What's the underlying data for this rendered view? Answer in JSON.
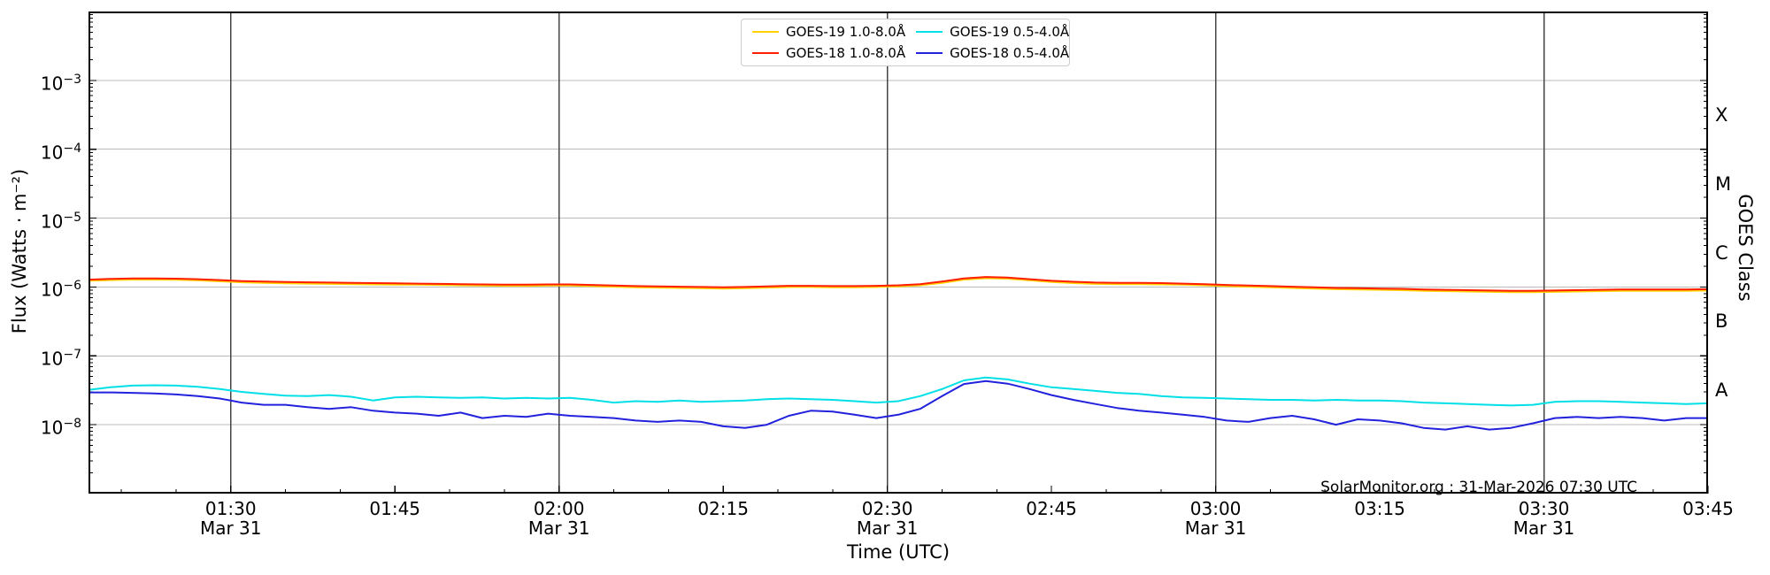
{
  "figure": {
    "watermark": "SolarMonitor.org : 31-Mar-2026 07:30 UTC",
    "background_color": "#ffffff",
    "border_color": "#000000",
    "major_gridline_color": "#444444",
    "decade_gridline_color": "#bbbbbb"
  },
  "chart_data": {
    "type": "line",
    "title": "",
    "xlabel": "Time (UTC)",
    "ylabel": "Flux (Watts · m⁻²)",
    "right_axis_label": "GOES Class",
    "x_unit": "minutes after 00:00 UTC on 31-Mar",
    "xlim": [
      77,
      225
    ],
    "ylim": [
      1e-09,
      0.01
    ],
    "y_scale": "log",
    "grid": "decade horizontal light, 30-min vertical dark",
    "legend_position": "top-center",
    "legend_columns": 2,
    "y_tick_exponents": [
      -3,
      -4,
      -5,
      -6,
      -7,
      -8
    ],
    "x_ticks": [
      {
        "t": 90,
        "time": "01:30",
        "date": "Mar 31"
      },
      {
        "t": 105,
        "time": "01:45",
        "date": ""
      },
      {
        "t": 120,
        "time": "02:00",
        "date": "Mar 31"
      },
      {
        "t": 135,
        "time": "02:15",
        "date": ""
      },
      {
        "t": 150,
        "time": "02:30",
        "date": "Mar 31"
      },
      {
        "t": 165,
        "time": "02:45",
        "date": ""
      },
      {
        "t": 180,
        "time": "03:00",
        "date": "Mar 31"
      },
      {
        "t": 195,
        "time": "03:15",
        "date": ""
      },
      {
        "t": 210,
        "time": "03:30",
        "date": "Mar 31"
      },
      {
        "t": 225,
        "time": "03:45",
        "date": ""
      }
    ],
    "x_minor_tick_step_min": 5,
    "vertical_gridline_times": [
      90,
      120,
      150,
      180,
      210
    ],
    "goes_classes": [
      {
        "label": "X",
        "center_exponent": -3.5
      },
      {
        "label": "M",
        "center_exponent": -4.5
      },
      {
        "label": "C",
        "center_exponent": -5.5
      },
      {
        "label": "B",
        "center_exponent": -6.5
      },
      {
        "label": "A",
        "center_exponent": -7.5
      }
    ],
    "x": [
      77,
      79,
      81,
      83,
      85,
      87,
      89,
      91,
      93,
      95,
      97,
      99,
      101,
      103,
      105,
      107,
      109,
      111,
      113,
      115,
      117,
      119,
      121,
      123,
      125,
      127,
      129,
      131,
      133,
      135,
      137,
      139,
      141,
      143,
      145,
      147,
      149,
      151,
      153,
      155,
      157,
      159,
      161,
      163,
      165,
      167,
      169,
      171,
      173,
      175,
      177,
      179,
      181,
      183,
      185,
      187,
      189,
      191,
      193,
      195,
      197,
      199,
      201,
      203,
      205,
      207,
      209,
      211,
      213,
      215,
      217,
      219,
      221,
      223,
      225
    ],
    "series": [
      {
        "name": "GOES-19 1.0-8.0Å",
        "color": "#ffd200",
        "values": [
          1.23e-06,
          1.26e-06,
          1.28e-06,
          1.28e-06,
          1.27e-06,
          1.25e-06,
          1.21e-06,
          1.17e-06,
          1.15e-06,
          1.13e-06,
          1.12e-06,
          1.11e-06,
          1.1e-06,
          1.09e-06,
          1.08e-06,
          1.08e-06,
          1.07e-06,
          1.06e-06,
          1.05e-06,
          1.04e-06,
          1.04e-06,
          1.05e-06,
          1.05e-06,
          1.03e-06,
          1.01e-06,
          9.9e-07,
          9.8e-07,
          9.7e-07,
          9.6e-07,
          9.5e-07,
          9.6e-07,
          9.8e-07,
          1e-06,
          1e-06,
          9.9e-07,
          9.9e-07,
          1e-06,
          1.02e-06,
          1.06e-06,
          1.15e-06,
          1.28e-06,
          1.34e-06,
          1.32e-06,
          1.25e-06,
          1.18e-06,
          1.14e-06,
          1.11e-06,
          1.1e-06,
          1.1e-06,
          1.09e-06,
          1.08e-06,
          1.06e-06,
          1.03e-06,
          1.01e-06,
          9.9e-07,
          9.7e-07,
          9.5e-07,
          9.3e-07,
          9.2e-07,
          9.1e-07,
          9e-07,
          8.8e-07,
          8.7e-07,
          8.6e-07,
          8.5e-07,
          8.4e-07,
          8.4e-07,
          8.5e-07,
          8.6e-07,
          8.7e-07,
          8.8e-07,
          8.8e-07,
          8.8e-07,
          8.8e-07,
          8.9e-07
        ]
      },
      {
        "name": "GOES-18 1.0-8.0Å",
        "color": "#ff1e00",
        "values": [
          1.28e-06,
          1.31e-06,
          1.33e-06,
          1.33e-06,
          1.32e-06,
          1.3e-06,
          1.26e-06,
          1.22e-06,
          1.2e-06,
          1.18e-06,
          1.17e-06,
          1.16e-06,
          1.15e-06,
          1.14e-06,
          1.13e-06,
          1.12e-06,
          1.11e-06,
          1.1e-06,
          1.09e-06,
          1.08e-06,
          1.08e-06,
          1.09e-06,
          1.09e-06,
          1.07e-06,
          1.05e-06,
          1.03e-06,
          1.02e-06,
          1.01e-06,
          1e-06,
          9.9e-07,
          1e-06,
          1.02e-06,
          1.04e-06,
          1.04e-06,
          1.03e-06,
          1.03e-06,
          1.04e-06,
          1.06e-06,
          1.1e-06,
          1.2e-06,
          1.33e-06,
          1.4e-06,
          1.37e-06,
          1.3e-06,
          1.23e-06,
          1.19e-06,
          1.16e-06,
          1.15e-06,
          1.15e-06,
          1.14e-06,
          1.12e-06,
          1.1e-06,
          1.07e-06,
          1.05e-06,
          1.03e-06,
          1.01e-06,
          9.9e-07,
          9.7e-07,
          9.6e-07,
          9.5e-07,
          9.4e-07,
          9.2e-07,
          9.1e-07,
          9e-07,
          8.9e-07,
          8.8e-07,
          8.8e-07,
          8.9e-07,
          9e-07,
          9.1e-07,
          9.2e-07,
          9.2e-07,
          9.2e-07,
          9.2e-07,
          9.3e-07
        ]
      },
      {
        "name": "GOES-19 0.5-4.0Å",
        "color": "#00e0e6",
        "values": [
          3.2e-08,
          3.5e-08,
          3.7e-08,
          3.75e-08,
          3.7e-08,
          3.55e-08,
          3.3e-08,
          3e-08,
          2.8e-08,
          2.65e-08,
          2.6e-08,
          2.7e-08,
          2.55e-08,
          2.25e-08,
          2.5e-08,
          2.55e-08,
          2.5e-08,
          2.45e-08,
          2.5e-08,
          2.4e-08,
          2.45e-08,
          2.4e-08,
          2.45e-08,
          2.3e-08,
          2.1e-08,
          2.2e-08,
          2.15e-08,
          2.25e-08,
          2.15e-08,
          2.2e-08,
          2.25e-08,
          2.35e-08,
          2.4e-08,
          2.35e-08,
          2.3e-08,
          2.2e-08,
          2.1e-08,
          2.2e-08,
          2.6e-08,
          3.3e-08,
          4.4e-08,
          4.85e-08,
          4.55e-08,
          3.95e-08,
          3.5e-08,
          3.3e-08,
          3.1e-08,
          2.9e-08,
          2.8e-08,
          2.6e-08,
          2.5e-08,
          2.45e-08,
          2.4e-08,
          2.35e-08,
          2.3e-08,
          2.3e-08,
          2.25e-08,
          2.3e-08,
          2.25e-08,
          2.25e-08,
          2.2e-08,
          2.1e-08,
          2.05e-08,
          2e-08,
          1.95e-08,
          1.9e-08,
          1.95e-08,
          2.15e-08,
          2.2e-08,
          2.2e-08,
          2.15e-08,
          2.1e-08,
          2.05e-08,
          2e-08,
          2.05e-08
        ]
      },
      {
        "name": "GOES-18 0.5-4.0Å",
        "color": "#2222dd",
        "values": [
          2.95e-08,
          2.95e-08,
          2.9e-08,
          2.85e-08,
          2.75e-08,
          2.6e-08,
          2.4e-08,
          2.1e-08,
          1.95e-08,
          1.95e-08,
          1.8e-08,
          1.7e-08,
          1.8e-08,
          1.6e-08,
          1.5e-08,
          1.45e-08,
          1.35e-08,
          1.5e-08,
          1.25e-08,
          1.35e-08,
          1.3e-08,
          1.45e-08,
          1.35e-08,
          1.3e-08,
          1.25e-08,
          1.15e-08,
          1.1e-08,
          1.15e-08,
          1.1e-08,
          9.5e-09,
          9e-09,
          1e-08,
          1.35e-08,
          1.6e-08,
          1.55e-08,
          1.4e-08,
          1.25e-08,
          1.4e-08,
          1.7e-08,
          2.6e-08,
          3.9e-08,
          4.3e-08,
          3.95e-08,
          3.3e-08,
          2.7e-08,
          2.3e-08,
          2e-08,
          1.75e-08,
          1.6e-08,
          1.5e-08,
          1.4e-08,
          1.3e-08,
          1.15e-08,
          1.1e-08,
          1.25e-08,
          1.35e-08,
          1.2e-08,
          1e-08,
          1.2e-08,
          1.15e-08,
          1.05e-08,
          9e-09,
          8.5e-09,
          9.5e-09,
          8.5e-09,
          9e-09,
          1.05e-08,
          1.25e-08,
          1.3e-08,
          1.25e-08,
          1.3e-08,
          1.25e-08,
          1.15e-08,
          1.25e-08,
          1.25e-08
        ]
      }
    ]
  }
}
